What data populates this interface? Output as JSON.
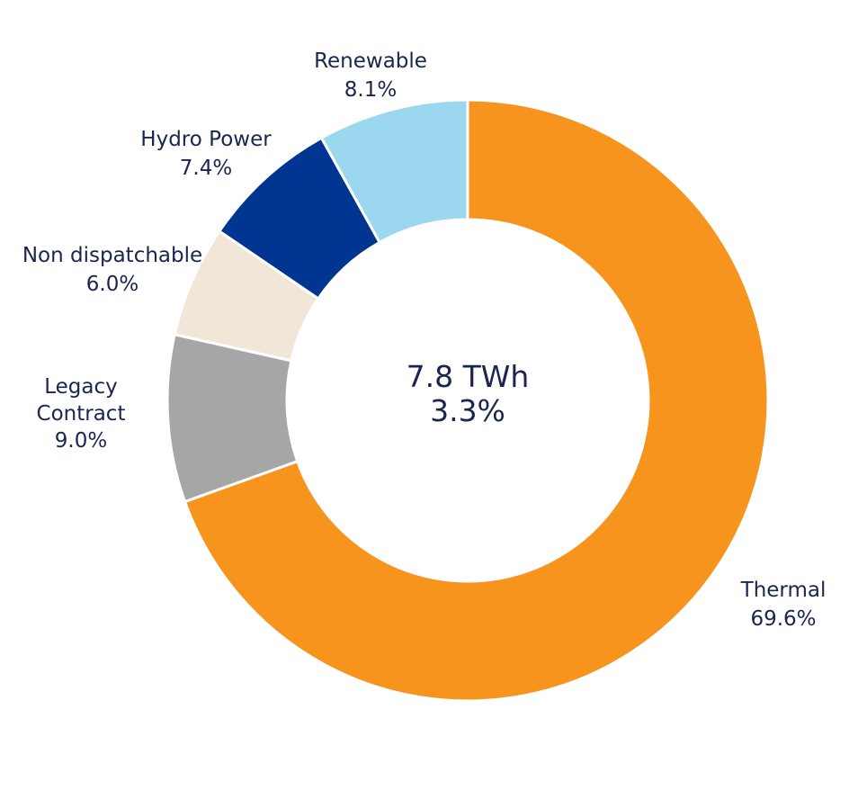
{
  "chart_data": {
    "type": "pie",
    "variant": "donut",
    "center_label": {
      "value": "7.8 TWh",
      "percent": "3.3%"
    },
    "slices": [
      {
        "name": "Thermal",
        "name_lines": [
          "Thermal"
        ],
        "value": 69.6,
        "value_label": "69.6%",
        "color": "#f7941d"
      },
      {
        "name": "Legacy Contract",
        "name_lines": [
          "Legacy",
          "Contract"
        ],
        "value": 9.0,
        "value_label": "9.0%",
        "color": "#a6a6a6"
      },
      {
        "name": "Non dispatchable",
        "name_lines": [
          "Non dispatchable"
        ],
        "value": 6.0,
        "value_label": "6.0%",
        "color": "#f2e6d8"
      },
      {
        "name": "Hydro Power",
        "name_lines": [
          "Hydro Power"
        ],
        "value": 7.4,
        "value_label": "7.4%",
        "color": "#003591"
      },
      {
        "name": "Renewable",
        "name_lines": [
          "Renewable"
        ],
        "value": 8.1,
        "value_label": "8.1%",
        "color": "#9bd8ef"
      }
    ]
  }
}
